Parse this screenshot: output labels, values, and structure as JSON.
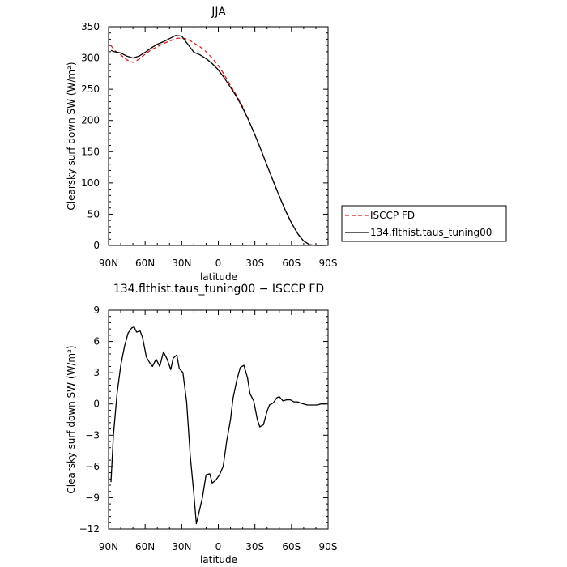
{
  "chart_data": [
    {
      "type": "line",
      "title": "JJA",
      "xlabel": "latitude",
      "ylabel": "Clearsky surf down SW (W/m²)",
      "xlim": [
        90,
        -90
      ],
      "ylim": [
        0,
        350
      ],
      "x_ticks": [
        90,
        60,
        30,
        0,
        -30,
        -60,
        -90
      ],
      "x_tick_labels": [
        "90N",
        "60N",
        "30N",
        "0",
        "30S",
        "60S",
        "90S"
      ],
      "y_ticks": [
        0,
        50,
        100,
        150,
        200,
        250,
        300,
        350
      ],
      "y_tick_labels": [
        "0",
        "50",
        "100",
        "150",
        "200",
        "250",
        "300",
        "350"
      ],
      "grid": false,
      "legend_position": "right",
      "series": [
        {
          "name": "ISCCP FD",
          "color": "#e31a1c",
          "dash": true,
          "x": [
            88,
            85,
            80,
            75,
            70,
            65,
            60,
            55,
            50,
            45,
            40,
            35,
            30,
            25,
            20,
            15,
            10,
            5,
            0,
            -5,
            -10,
            -15,
            -20,
            -25,
            -30,
            -35,
            -40,
            -45,
            -50,
            -55,
            -60,
            -65,
            -70,
            -75,
            -80,
            -85,
            -88
          ],
          "y": [
            320,
            312,
            305,
            297,
            293,
            298,
            306,
            313,
            318,
            323,
            327,
            331,
            332,
            330,
            324,
            318,
            310,
            300,
            288,
            273,
            256,
            240,
            222,
            200,
            177,
            153,
            128,
            103,
            79,
            56,
            36,
            19,
            7,
            1,
            0,
            0,
            0
          ]
        },
        {
          "name": "134.flthist.taus_tuning00",
          "color": "#000000",
          "dash": false,
          "x": [
            88,
            85,
            80,
            75,
            70,
            65,
            60,
            55,
            50,
            45,
            40,
            35,
            30,
            25,
            20,
            15,
            10,
            5,
            0,
            -5,
            -10,
            -15,
            -20,
            -25,
            -30,
            -35,
            -40,
            -45,
            -50,
            -55,
            -60,
            -65,
            -70,
            -75,
            -80,
            -85,
            -88
          ],
          "y": [
            312,
            310,
            308,
            303,
            300,
            303,
            309,
            316,
            322,
            326,
            331,
            336,
            335,
            322,
            309,
            305,
            299,
            291,
            281,
            268,
            253,
            238,
            220,
            200,
            177,
            153,
            128,
            103,
            79,
            56,
            36,
            19,
            7,
            1,
            0,
            0,
            0
          ]
        }
      ]
    },
    {
      "type": "line",
      "title": "134.flthist.taus_tuning00 − ISCCP FD",
      "xlabel": "latitude",
      "ylabel": "Clearsky surf down SW (W/m²)",
      "xlim": [
        90,
        -90
      ],
      "ylim": [
        -12,
        9
      ],
      "x_ticks": [
        90,
        60,
        30,
        0,
        -30,
        -60,
        -90
      ],
      "x_tick_labels": [
        "90N",
        "60N",
        "30N",
        "0",
        "30S",
        "60S",
        "90S"
      ],
      "y_ticks": [
        -12,
        -9,
        -6,
        -3,
        0,
        3,
        6,
        9
      ],
      "y_tick_labels": [
        "−12",
        "−9",
        "−6",
        "−3",
        "0",
        "3",
        "6",
        "9"
      ],
      "grid": false,
      "series": [
        {
          "color": "#000000",
          "dash": false,
          "x": [
            88,
            86,
            83,
            80,
            77,
            74,
            71,
            69,
            67,
            64,
            62,
            59,
            56,
            54,
            51,
            48,
            45,
            42,
            39,
            37,
            34,
            32,
            29,
            26,
            23,
            20,
            18,
            15,
            13,
            10,
            7,
            5,
            2,
            -1,
            -4,
            -7,
            -10,
            -12,
            -15,
            -18,
            -21,
            -24,
            -26,
            -29,
            -32,
            -34,
            -37,
            -40,
            -42,
            -45,
            -48,
            -50,
            -53,
            -56,
            -59,
            -62,
            -65,
            -67,
            -70,
            -73,
            -76,
            -79,
            -81,
            -84,
            -87,
            -89
          ],
          "y": [
            -7.5,
            -3,
            1,
            3.7,
            5.5,
            6.8,
            7.3,
            7.4,
            6.9,
            7,
            6.3,
            4.5,
            3.9,
            3.6,
            4.3,
            3.6,
            5,
            4.3,
            3.3,
            4.4,
            4.7,
            3.4,
            3,
            0.2,
            -5,
            -8.7,
            -11.5,
            -10,
            -9,
            -6.8,
            -6.7,
            -7.6,
            -7.3,
            -6.8,
            -6,
            -3.5,
            -1.5,
            0.5,
            2.2,
            3.5,
            3.7,
            2.5,
            1,
            0.3,
            -1.5,
            -2.2,
            -2,
            -0.7,
            -0.1,
            0.1,
            0.6,
            0.7,
            0.3,
            0.4,
            0.4,
            0.2,
            0.2,
            0.1,
            0,
            -0.1,
            -0.1,
            -0.1,
            -0.1,
            0,
            0,
            0
          ]
        }
      ]
    }
  ]
}
